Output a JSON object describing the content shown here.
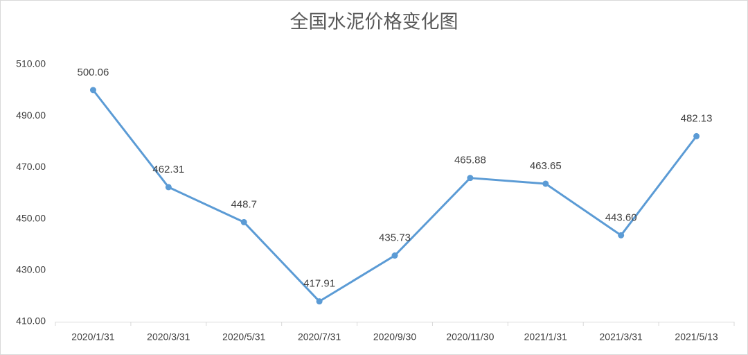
{
  "chart_data": {
    "type": "line",
    "title": "全国水泥价格变化图",
    "categories": [
      "2020/1/31",
      "2020/3/31",
      "2020/5/31",
      "2020/7/31",
      "2020/9/30",
      "2020/11/30",
      "2021/1/31",
      "2021/3/31",
      "2021/5/13"
    ],
    "values": [
      500.06,
      462.31,
      448.7,
      417.91,
      435.73,
      465.88,
      463.65,
      443.6,
      482.13
    ],
    "value_labels": [
      "500.06",
      "462.31",
      "448.7",
      "417.91",
      "435.73",
      "465.88",
      "463.65",
      "443.60",
      "482.13"
    ],
    "color": "#5b9bd5",
    "ylim": [
      410,
      510
    ],
    "yticks": [
      {
        "value": 410,
        "label": "410.00"
      },
      {
        "value": 430,
        "label": "430.00"
      },
      {
        "value": 450,
        "label": "450.00"
      },
      {
        "value": 470,
        "label": "470.00"
      },
      {
        "value": 490,
        "label": "490.00"
      },
      {
        "value": 510,
        "label": "510.00"
      }
    ],
    "grid": false
  }
}
